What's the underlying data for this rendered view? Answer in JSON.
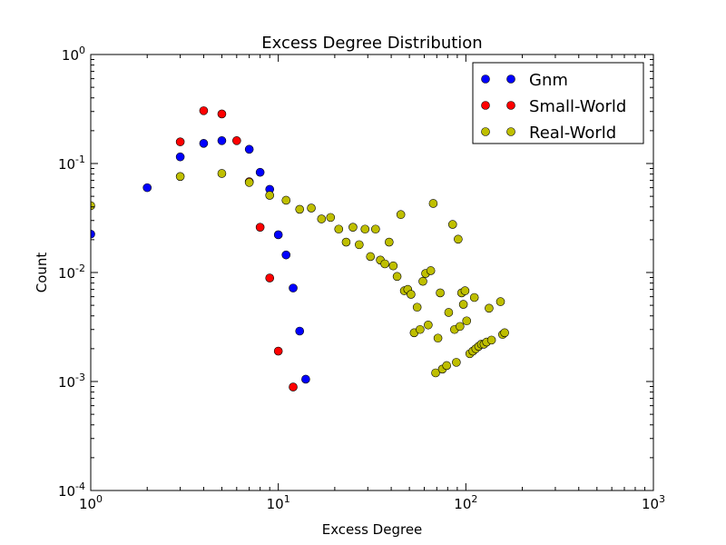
{
  "chart_data": {
    "type": "scatter",
    "title": "Excess Degree Distribution",
    "xlabel": "Excess Degree",
    "ylabel": "Count",
    "xscale": "log",
    "yscale": "log",
    "xlim": [
      1,
      1000
    ],
    "ylim": [
      0.0001,
      1
    ],
    "x_ticks": [
      {
        "value": 1,
        "base": "10",
        "exp": "0"
      },
      {
        "value": 10,
        "base": "10",
        "exp": "1"
      },
      {
        "value": 100,
        "base": "10",
        "exp": "2"
      },
      {
        "value": 1000,
        "base": "10",
        "exp": "3"
      }
    ],
    "y_ticks": [
      {
        "value": 0.0001,
        "base": "10",
        "exp": "-4"
      },
      {
        "value": 0.001,
        "base": "10",
        "exp": "-3"
      },
      {
        "value": 0.01,
        "base": "10",
        "exp": "-2"
      },
      {
        "value": 0.1,
        "base": "10",
        "exp": "-1"
      },
      {
        "value": 1,
        "base": "10",
        "exp": "0"
      }
    ],
    "grid": false,
    "legend_position": "top-right",
    "series": [
      {
        "name": "Gnm",
        "color": "#0000ff",
        "points": [
          [
            1,
            0.0225
          ],
          [
            2,
            0.06
          ],
          [
            3,
            0.115
          ],
          [
            4,
            0.153
          ],
          [
            5,
            0.162
          ],
          [
            7,
            0.135
          ],
          [
            8,
            0.083
          ],
          [
            9,
            0.058
          ],
          [
            10,
            0.0222
          ],
          [
            11,
            0.0145
          ],
          [
            12,
            0.0072
          ],
          [
            13,
            0.0029
          ],
          [
            14,
            0.00105
          ]
        ]
      },
      {
        "name": "Small-World",
        "color": "#ff0000",
        "points": [
          [
            3,
            0.158
          ],
          [
            4,
            0.305
          ],
          [
            5,
            0.285
          ],
          [
            6,
            0.162
          ],
          [
            7,
            0.068
          ],
          [
            8,
            0.026
          ],
          [
            9,
            0.0089
          ],
          [
            10,
            0.0019
          ],
          [
            12,
            0.00089
          ]
        ]
      },
      {
        "name": "Real-World",
        "color": "#bfbf00",
        "points": [
          [
            1,
            0.041
          ],
          [
            3,
            0.076
          ],
          [
            5,
            0.081
          ],
          [
            7,
            0.067
          ],
          [
            9,
            0.051
          ],
          [
            11,
            0.046
          ],
          [
            13,
            0.038
          ],
          [
            15,
            0.039
          ],
          [
            17,
            0.031
          ],
          [
            19,
            0.032
          ],
          [
            21,
            0.025
          ],
          [
            23,
            0.019
          ],
          [
            25,
            0.026
          ],
          [
            27,
            0.018
          ],
          [
            29,
            0.025
          ],
          [
            31,
            0.014
          ],
          [
            33,
            0.025
          ],
          [
            35,
            0.013
          ],
          [
            37,
            0.012
          ],
          [
            39,
            0.019
          ],
          [
            41,
            0.0115
          ],
          [
            43,
            0.0092
          ],
          [
            45,
            0.034
          ],
          [
            47,
            0.0068
          ],
          [
            49,
            0.007
          ],
          [
            51,
            0.0063
          ],
          [
            53,
            0.0028
          ],
          [
            55,
            0.0048
          ],
          [
            57,
            0.003
          ],
          [
            59,
            0.0083
          ],
          [
            61,
            0.0098
          ],
          [
            63,
            0.0033
          ],
          [
            65,
            0.0104
          ],
          [
            67,
            0.043
          ],
          [
            69,
            0.0012
          ],
          [
            71,
            0.0025
          ],
          [
            73,
            0.0065
          ],
          [
            75,
            0.0013
          ],
          [
            79,
            0.0014
          ],
          [
            81,
            0.0043
          ],
          [
            85,
            0.0276
          ],
          [
            87,
            0.003
          ],
          [
            89,
            0.0015
          ],
          [
            91,
            0.0202
          ],
          [
            93,
            0.0032
          ],
          [
            95,
            0.0065
          ],
          [
            97,
            0.0051
          ],
          [
            99,
            0.0068
          ],
          [
            101,
            0.0036
          ],
          [
            105,
            0.0018
          ],
          [
            109,
            0.0019
          ],
          [
            111,
            0.0059
          ],
          [
            113,
            0.002
          ],
          [
            117,
            0.0021
          ],
          [
            121,
            0.0022
          ],
          [
            125,
            0.0022
          ],
          [
            129,
            0.0023
          ],
          [
            133,
            0.0047
          ],
          [
            137,
            0.0024
          ],
          [
            153,
            0.0054
          ],
          [
            157,
            0.0027
          ],
          [
            161,
            0.0028
          ]
        ]
      }
    ]
  }
}
